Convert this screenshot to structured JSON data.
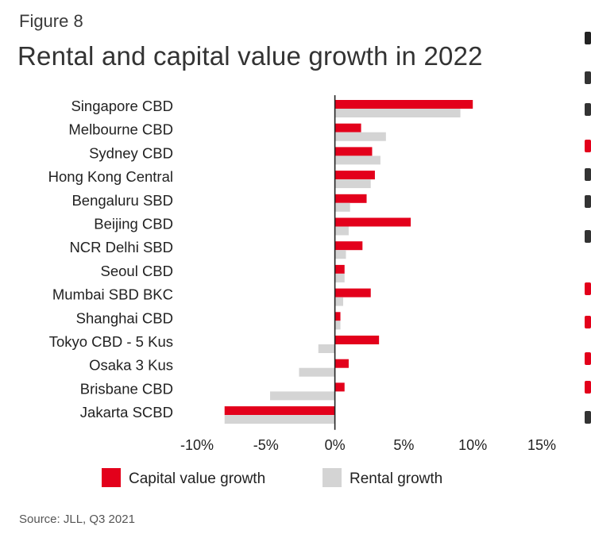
{
  "figure_label": "Figure 8",
  "title": "Rental and capital value growth in 2022",
  "source": "Source: JLL, Q3 2021",
  "colors": {
    "capital": "#e3001b",
    "rental": "#d4d4d4",
    "axis": "#222222"
  },
  "chart_data": {
    "type": "bar",
    "orientation": "horizontal",
    "title": "Rental and capital value growth in 2022",
    "categories": [
      "Singapore CBD",
      "Melbourne CBD",
      "Sydney CBD",
      "Hong Kong Central",
      "Bengaluru SBD",
      "Beijing CBD",
      "NCR Delhi SBD",
      "Seoul CBD",
      "Mumbai SBD BKC",
      "Shanghai CBD",
      "Tokyo CBD - 5 Kus",
      "Osaka 3 Kus",
      "Brisbane CBD",
      "Jakarta SCBD"
    ],
    "series": [
      {
        "name": "Capital value growth",
        "color": "#e3001b",
        "values": [
          10.0,
          1.9,
          2.7,
          2.9,
          2.3,
          5.5,
          2.0,
          0.7,
          2.6,
          0.4,
          3.2,
          1.0,
          0.7,
          -8.0
        ]
      },
      {
        "name": "Rental growth",
        "color": "#d4d4d4",
        "values": [
          9.1,
          3.7,
          3.3,
          2.6,
          1.1,
          1.0,
          0.8,
          0.7,
          0.6,
          0.4,
          -1.2,
          -2.6,
          -4.7,
          -8.0
        ]
      }
    ],
    "xlim": [
      -10,
      15
    ],
    "xticks": [
      -10,
      -5,
      0,
      5,
      10,
      15
    ],
    "xtick_labels": [
      "-10%",
      "-5%",
      "0%",
      "5%",
      "10%",
      "15%"
    ],
    "legend": [
      "Capital value growth",
      "Rental growth"
    ],
    "legend_position": "bottom",
    "grid": false
  }
}
